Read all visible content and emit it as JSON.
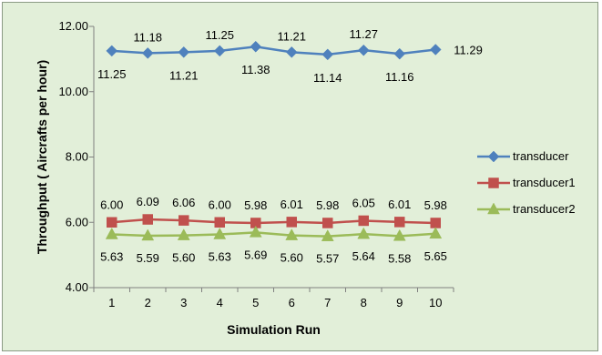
{
  "chart_data": {
    "type": "line",
    "title": "",
    "xlabel": "Simulation Run",
    "ylabel": "Throughput ( Aircrafts per hour)",
    "categories": [
      "1",
      "2",
      "3",
      "4",
      "5",
      "6",
      "7",
      "8",
      "9",
      "10"
    ],
    "ylim": [
      4.0,
      12.0
    ],
    "yticks": [
      "4.00",
      "6.00",
      "8.00",
      "10.00",
      "12.00"
    ],
    "grid": false,
    "legend_position": "right",
    "series": [
      {
        "name": "transducer",
        "color": "#4f81bd",
        "marker": "diamond",
        "values": [
          11.25,
          11.18,
          11.21,
          11.25,
          11.38,
          11.21,
          11.14,
          11.27,
          11.16,
          11.29
        ],
        "labels": [
          "11.25",
          "11.18",
          "11.21",
          "11.25",
          "11.38",
          "11.21",
          "11.14",
          "11.27",
          "11.16",
          "11.29"
        ]
      },
      {
        "name": "transducer1",
        "color": "#c0504d",
        "marker": "square",
        "values": [
          6.0,
          6.09,
          6.06,
          6.0,
          5.98,
          6.01,
          5.98,
          6.05,
          6.01,
          5.98
        ],
        "labels": [
          "6.00",
          "6.09",
          "6.06",
          "6.00",
          "5.98",
          "6.01",
          "5.98",
          "6.05",
          "6.01",
          "5.98"
        ]
      },
      {
        "name": "transducer2",
        "color": "#9bbb59",
        "marker": "triangle",
        "values": [
          5.63,
          5.59,
          5.6,
          5.63,
          5.69,
          5.6,
          5.57,
          5.64,
          5.58,
          5.65
        ],
        "labels": [
          "5.63",
          "5.59",
          "5.60",
          "5.63",
          "5.69",
          "5.60",
          "5.57",
          "5.64",
          "5.58",
          "5.65"
        ]
      }
    ]
  }
}
